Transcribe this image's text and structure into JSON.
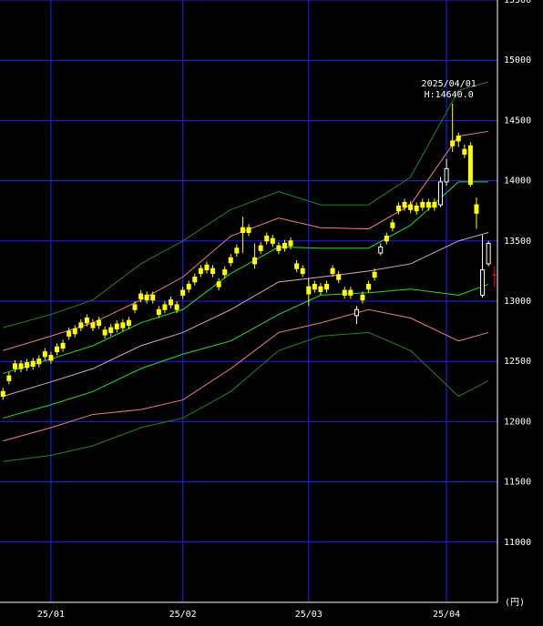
{
  "chart_data": {
    "type": "candlestick",
    "xlim": [
      -0.5,
      82.5
    ],
    "xticks": [
      {
        "value": 8,
        "label": "25/01"
      },
      {
        "value": 30,
        "label": "25/02"
      },
      {
        "value": 51,
        "label": "25/03"
      },
      {
        "value": 74,
        "label": "25/04"
      }
    ],
    "ylim": [
      10500,
      15500
    ],
    "yticks": [
      11000,
      11500,
      12000,
      12500,
      13000,
      13500,
      14000,
      14500,
      15000,
      15500
    ],
    "y_unit": "(円)",
    "grid": true,
    "grid_color": "#1e1eff",
    "up_color": "#ffffff",
    "down_color": "#ffff00",
    "doji_color": "#ff0000",
    "annotation": {
      "date": "2025/04/01",
      "label": "H:14640.0"
    },
    "candles": {
      "open": [
        12250,
        12380,
        12480,
        12480,
        12490,
        12500,
        12520,
        12580,
        12550,
        12620,
        12650,
        12750,
        12770,
        12820,
        12860,
        12820,
        12840,
        12760,
        12780,
        12810,
        12820,
        12840,
        12970,
        13060,
        13050,
        13050,
        12930,
        12970,
        13010,
        12970,
        13090,
        13140,
        13200,
        13270,
        13300,
        13270,
        13160,
        13260,
        13360,
        13440,
        13610,
        13610,
        13360,
        13460,
        13540,
        13520,
        13460,
        13480,
        13500,
        13310,
        13270,
        13120,
        13140,
        13120,
        13140,
        13270,
        13220,
        13090,
        13090,
        12880,
        13050,
        13140,
        13240,
        13400,
        13540,
        13650,
        13790,
        13820,
        13800,
        13790,
        13820,
        13820,
        13820,
        13800,
        13990,
        14330,
        14370,
        14260,
        14290,
        13800,
        13050,
        13310,
        13220
      ],
      "high": [
        12280,
        12410,
        12510,
        12510,
        12520,
        12530,
        12550,
        12610,
        12580,
        12650,
        12680,
        12780,
        12800,
        12850,
        12890,
        12850,
        12870,
        12790,
        12810,
        12840,
        12850,
        12870,
        13000,
        13090,
        13080,
        13080,
        12960,
        13000,
        13040,
        13000,
        13120,
        13170,
        13230,
        13300,
        13330,
        13300,
        13190,
        13290,
        13390,
        13470,
        13700,
        13640,
        13480,
        13490,
        13570,
        13550,
        13490,
        13510,
        13530,
        13340,
        13300,
        13190,
        13170,
        13150,
        13170,
        13300,
        13250,
        13120,
        13120,
        12960,
        13080,
        13170,
        13270,
        13480,
        13570,
        13680,
        13820,
        13850,
        13830,
        13820,
        13850,
        13850,
        13850,
        14030,
        14180,
        14640,
        14400,
        14300,
        14320,
        13860,
        13550,
        13500,
        13290
      ],
      "low": [
        12180,
        12310,
        12410,
        12410,
        12420,
        12430,
        12450,
        12510,
        12480,
        12550,
        12580,
        12680,
        12700,
        12750,
        12790,
        12750,
        12770,
        12690,
        12710,
        12740,
        12750,
        12770,
        12900,
        12990,
        12980,
        12980,
        12860,
        12900,
        12940,
        12900,
        13020,
        13070,
        13130,
        13200,
        13230,
        13200,
        13090,
        13190,
        13290,
        13370,
        13400,
        13540,
        13270,
        13390,
        13470,
        13450,
        13390,
        13410,
        13430,
        13240,
        13200,
        12960,
        13070,
        13050,
        13070,
        13200,
        13150,
        13020,
        13020,
        12810,
        12980,
        13070,
        13170,
        13380,
        13470,
        13580,
        13720,
        13750,
        13730,
        13720,
        13750,
        13750,
        13750,
        13780,
        13960,
        14240,
        14280,
        14190,
        13950,
        13600,
        13030,
        13290,
        13120
      ],
      "close": [
        12210,
        12340,
        12440,
        12440,
        12450,
        12460,
        12480,
        12540,
        12510,
        12580,
        12610,
        12710,
        12730,
        12780,
        12820,
        12780,
        12800,
        12720,
        12740,
        12770,
        12780,
        12800,
        12930,
        13020,
        13010,
        13010,
        12890,
        12930,
        12970,
        12930,
        13050,
        13100,
        13160,
        13230,
        13260,
        13230,
        13120,
        13220,
        13320,
        13400,
        13570,
        13570,
        13310,
        13420,
        13500,
        13480,
        13420,
        13440,
        13460,
        13270,
        13230,
        13060,
        13100,
        13080,
        13100,
        13230,
        13180,
        13050,
        13050,
        12930,
        13010,
        13100,
        13200,
        13450,
        13500,
        13610,
        13750,
        13780,
        13760,
        13750,
        13780,
        13780,
        13780,
        13990,
        14100,
        14290,
        14330,
        14220,
        13970,
        13730,
        13260,
        13480,
        13220
      ]
    },
    "series": [
      {
        "color": "#1a8a1a",
        "x": [
          0,
          8,
          15,
          23,
          30,
          38,
          46,
          53,
          61,
          68,
          76,
          81
        ],
        "values": [
          12780,
          12890,
          13010,
          13310,
          13500,
          13760,
          13910,
          13800,
          13800,
          14030,
          14750,
          14820
        ]
      },
      {
        "color": "#f08070",
        "x": [
          0,
          8,
          15,
          23,
          30,
          38,
          46,
          53,
          61,
          68,
          76,
          81
        ],
        "values": [
          12590,
          12710,
          12820,
          13010,
          13200,
          13540,
          13690,
          13610,
          13600,
          13800,
          14370,
          14410
        ]
      },
      {
        "color": "#20e020",
        "x": [
          0,
          8,
          15,
          23,
          30,
          38,
          46,
          53,
          61,
          68,
          76,
          81
        ],
        "values": [
          12400,
          12520,
          12630,
          12820,
          12930,
          13230,
          13450,
          13440,
          13440,
          13630,
          13990,
          13990
        ]
      },
      {
        "color": "#e0a0d0",
        "x": [
          0,
          8,
          15,
          23,
          30,
          38,
          46,
          53,
          61,
          68,
          76,
          81
        ],
        "values": [
          12210,
          12330,
          12440,
          12630,
          12740,
          12930,
          13160,
          13200,
          13250,
          13310,
          13500,
          13570
        ]
      },
      {
        "color": "#20e020",
        "x": [
          0,
          8,
          15,
          23,
          30,
          38,
          46,
          53,
          61,
          68,
          76,
          81
        ],
        "values": [
          12030,
          12140,
          12250,
          12440,
          12560,
          12670,
          12890,
          13050,
          13070,
          13100,
          13050,
          13140
        ]
      },
      {
        "color": "#f08070",
        "x": [
          0,
          8,
          15,
          23,
          30,
          38,
          46,
          53,
          61,
          68,
          76,
          81
        ],
        "values": [
          11840,
          11950,
          12060,
          12100,
          12180,
          12440,
          12740,
          12820,
          12930,
          12860,
          12670,
          12740
        ]
      },
      {
        "color": "#1a8a1a",
        "x": [
          0,
          8,
          15,
          23,
          30,
          38,
          46,
          53,
          61,
          68,
          76,
          81
        ],
        "values": [
          11670,
          11720,
          11800,
          11950,
          12030,
          12250,
          12590,
          12710,
          12740,
          12590,
          12210,
          12340
        ]
      }
    ]
  }
}
